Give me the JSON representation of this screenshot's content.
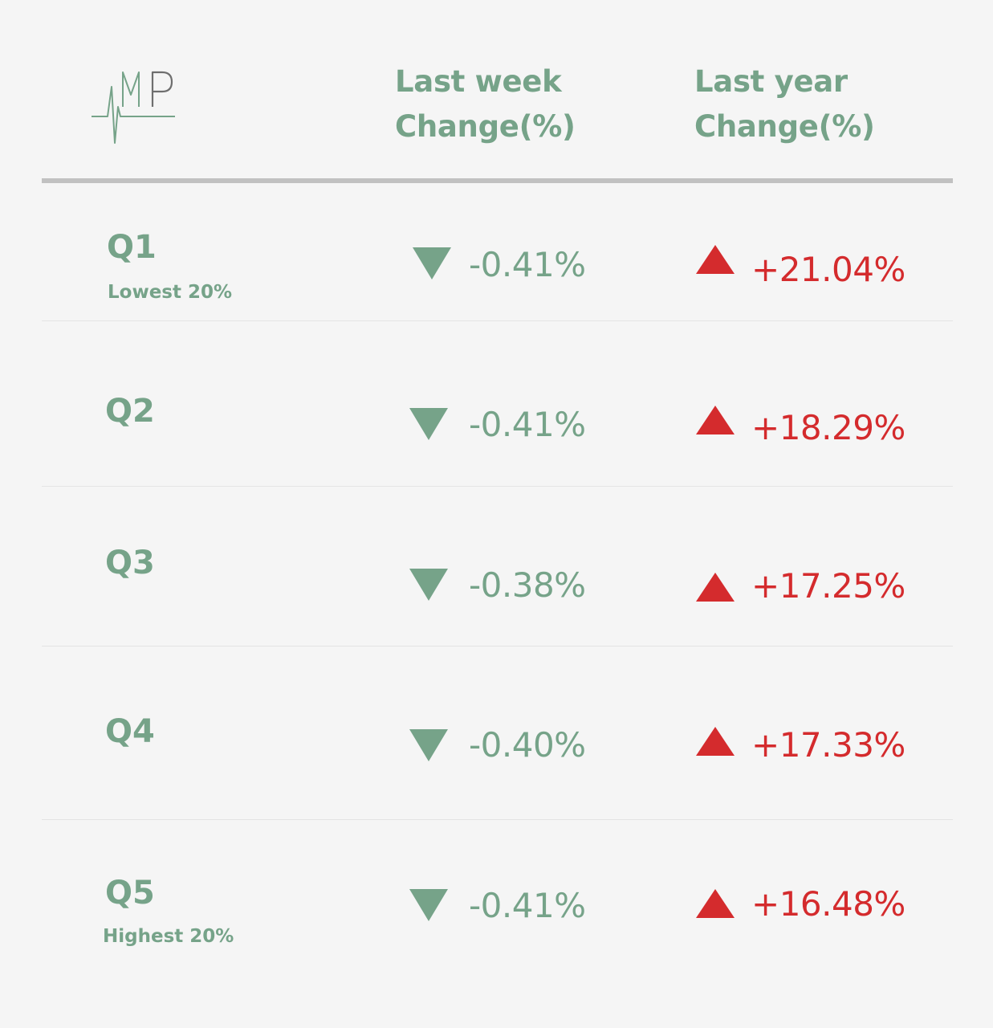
{
  "logo": {
    "text": "MP",
    "icon": "heartbeat-logo-icon"
  },
  "header": {
    "col_week": [
      "Last week",
      "Change(%)"
    ],
    "col_year": [
      "Last year",
      "Change(%)"
    ]
  },
  "colors": {
    "green": "#76a389",
    "red": "#d42b2d",
    "background": "#f5f5f5"
  },
  "chart_data": {
    "type": "table",
    "columns": [
      "",
      "Last week Change(%)",
      "Last year Change(%)"
    ],
    "rows": [
      {
        "label": "Q1",
        "sublabel": "Lowest 20%",
        "week": "-0.41%",
        "week_dir": "down",
        "year": "+21.04%",
        "year_dir": "up"
      },
      {
        "label": "Q2",
        "sublabel": "",
        "week": "-0.41%",
        "week_dir": "down",
        "year": "+18.29%",
        "year_dir": "up"
      },
      {
        "label": "Q3",
        "sublabel": "",
        "week": "-0.38%",
        "week_dir": "down",
        "year": "+17.25%",
        "year_dir": "up"
      },
      {
        "label": "Q4",
        "sublabel": "",
        "week": "-0.40%",
        "week_dir": "down",
        "year": "+17.33%",
        "year_dir": "up"
      },
      {
        "label": "Q5",
        "sublabel": "Highest 20%",
        "week": "-0.41%",
        "week_dir": "down",
        "year": "+16.48%",
        "year_dir": "up"
      }
    ]
  }
}
